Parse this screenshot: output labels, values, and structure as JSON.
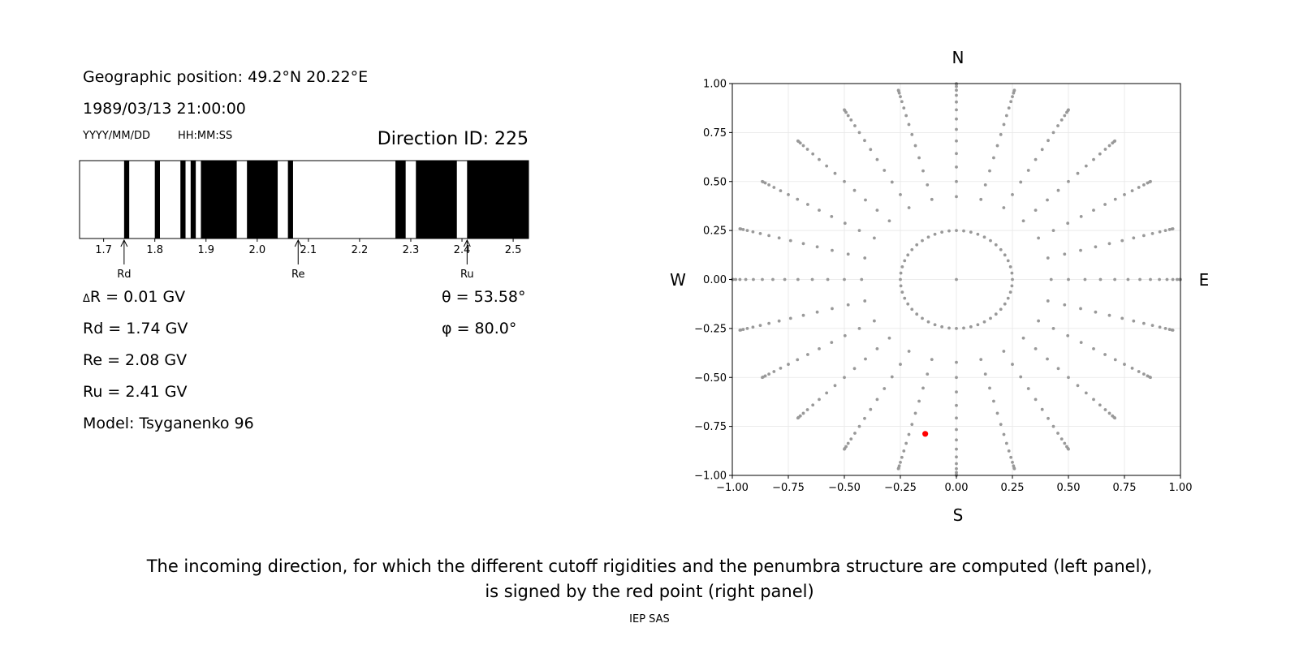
{
  "left_panel": {
    "geo_position": "Geographic position: 49.2°N 20.22°E",
    "datetime": "1989/03/13 21:00:00",
    "date_format_label": "YYYY/MM/DD",
    "time_format_label": "HH:MM:SS",
    "direction_id": "Direction ID: 225",
    "delta_r": "R = 0.01 GV",
    "delta_symbol": "Δ",
    "rd": "Rd = 1.74 GV",
    "re": "Re = 2.08 GV",
    "ru": "Ru = 2.41 GV",
    "model": "Model: Tsyganenko 96",
    "theta": "θ = 53.58°",
    "phi": "φ = 80.0°"
  },
  "right_panel": {
    "north": "N",
    "south": "S",
    "west": "W",
    "east": "E"
  },
  "caption": {
    "line1": "The incoming direction, for which the different cutoff rigidities and the penumbra structure are computed (left panel),",
    "line2": "is signed by the red point (right panel)",
    "credit": "IEP SAS"
  },
  "colors": {
    "allowed": "#ffffff",
    "forbidden": "#000000",
    "grid_point": "#999999",
    "selected_point": "#ff0000"
  },
  "chart_data": [
    {
      "type": "bar",
      "description_kind": "penumbra",
      "xlim": [
        1.653,
        2.53
      ],
      "xticks": [
        1.7,
        1.8,
        1.9,
        2.0,
        2.1,
        2.2,
        2.3,
        2.4,
        2.5
      ],
      "forbidden_bands": [
        [
          1.74,
          1.75
        ],
        [
          1.8,
          1.81
        ],
        [
          1.85,
          1.86
        ],
        [
          1.87,
          1.88
        ],
        [
          1.89,
          1.96
        ],
        [
          1.98,
          2.04
        ],
        [
          2.06,
          2.07
        ],
        [
          2.27,
          2.29
        ],
        [
          2.31,
          2.39
        ],
        [
          2.41,
          2.53
        ]
      ],
      "markers": [
        {
          "label": "Rd",
          "value": 1.74
        },
        {
          "label": "Re",
          "value": 2.08
        },
        {
          "label": "Ru",
          "value": 2.41
        }
      ]
    },
    {
      "type": "scatter",
      "xlim": [
        -1.0,
        1.0
      ],
      "ylim": [
        -1.0,
        1.0
      ],
      "xticks": [
        -1.0,
        -0.75,
        -0.5,
        -0.25,
        0.0,
        0.25,
        0.5,
        0.75,
        1.0
      ],
      "yticks": [
        -1.0,
        -0.75,
        -0.5,
        -0.25,
        0.0,
        0.25,
        0.5,
        0.75,
        1.0
      ],
      "tick_labels": [
        "−1.00",
        "−0.75",
        "−0.50",
        "−0.25",
        "0.00",
        "0.25",
        "0.50",
        "0.75",
        "1.00"
      ],
      "grid": true,
      "grid_description": "directions on zenith circles (theta 15° to 90° every 5°) and 24 azimuths, plus the vertical direction",
      "zenith_rings_r": [
        0.0,
        0.25,
        0.423,
        0.5,
        0.574,
        0.643,
        0.707,
        0.766,
        0.819,
        0.866,
        0.906,
        0.94,
        0.966,
        0.985,
        0.996,
        1.0
      ],
      "azimuth_step_deg": 15,
      "selected_point": {
        "x": -0.139,
        "y": -0.788
      }
    }
  ]
}
